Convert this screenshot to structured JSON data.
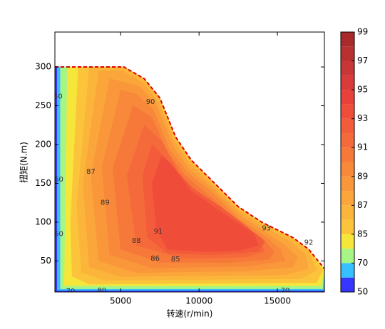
{
  "chart_data": {
    "type": "contour",
    "x_label": "转速(r/min)",
    "y_label": "扭矩(N.m)",
    "xlim": [
      800,
      18000
    ],
    "ylim": [
      10,
      345
    ],
    "xticks": [
      5000,
      10000,
      15000
    ],
    "yticks": [
      50,
      100,
      150,
      200,
      250,
      300
    ],
    "grid": false,
    "levels": [
      50,
      60,
      70,
      80,
      85,
      86,
      87,
      88,
      89,
      90,
      91,
      92,
      93,
      94,
      95,
      96,
      97,
      98,
      99
    ],
    "band_colors": [
      "#3636ff",
      "#36c0ff",
      "#a6f586",
      "#f6e63a",
      "#fbc43a",
      "#fbb53a",
      "#fba63a",
      "#fa973a",
      "#f8883a",
      "#f7793a",
      "#f56a3a",
      "#f35b3a",
      "#f04c3a",
      "#e8403a",
      "#d93a3a",
      "#c83636",
      "#b83030",
      "#a82a2a"
    ],
    "colorbar_ticks": [
      50,
      70,
      85,
      87,
      89,
      91,
      93,
      95,
      97,
      99
    ],
    "boundary": {
      "color": "#e00000",
      "x": [
        800,
        5200,
        6500,
        7500,
        8500,
        9500,
        11000,
        12500,
        14000,
        16000,
        17000,
        18000
      ],
      "y": [
        300,
        300,
        285,
        260,
        210,
        180,
        150,
        120,
        100,
        80,
        65,
        40
      ]
    },
    "regions": [
      {
        "level": 50,
        "polygon": [
          [
            800,
            300
          ],
          [
            5200,
            300
          ],
          [
            6500,
            285
          ],
          [
            7500,
            260
          ],
          [
            8500,
            210
          ],
          [
            9500,
            180
          ],
          [
            11000,
            150
          ],
          [
            12500,
            120
          ],
          [
            14000,
            100
          ],
          [
            16000,
            80
          ],
          [
            17000,
            65
          ],
          [
            18000,
            40
          ],
          [
            18000,
            10
          ],
          [
            800,
            10
          ]
        ]
      },
      {
        "level": 60,
        "polygon": [
          [
            950,
            300
          ],
          [
            5200,
            300
          ],
          [
            6500,
            285
          ],
          [
            7500,
            260
          ],
          [
            8500,
            210
          ],
          [
            9500,
            180
          ],
          [
            11000,
            150
          ],
          [
            12500,
            120
          ],
          [
            14000,
            100
          ],
          [
            16000,
            80
          ],
          [
            17000,
            65
          ],
          [
            18000,
            40
          ],
          [
            18000,
            12
          ],
          [
            950,
            12
          ]
        ]
      },
      {
        "level": 70,
        "polygon": [
          [
            1150,
            300
          ],
          [
            5200,
            300
          ],
          [
            6500,
            285
          ],
          [
            7500,
            260
          ],
          [
            8500,
            210
          ],
          [
            9500,
            180
          ],
          [
            11000,
            150
          ],
          [
            12500,
            120
          ],
          [
            14000,
            100
          ],
          [
            16000,
            80
          ],
          [
            17000,
            65
          ],
          [
            18000,
            40
          ],
          [
            17900,
            14
          ],
          [
            1150,
            14
          ]
        ]
      },
      {
        "level": 80,
        "polygon": [
          [
            1600,
            300
          ],
          [
            5200,
            300
          ],
          [
            6500,
            285
          ],
          [
            7500,
            260
          ],
          [
            8500,
            210
          ],
          [
            9500,
            180
          ],
          [
            11000,
            150
          ],
          [
            12500,
            120
          ],
          [
            14000,
            100
          ],
          [
            16000,
            80
          ],
          [
            17000,
            65
          ],
          [
            18000,
            40
          ],
          [
            17800,
            18
          ],
          [
            1400,
            18
          ]
        ]
      },
      {
        "level": 85,
        "polygon": [
          [
            2300,
            300
          ],
          [
            5200,
            300
          ],
          [
            6500,
            285
          ],
          [
            7500,
            260
          ],
          [
            8500,
            210
          ],
          [
            9500,
            180
          ],
          [
            11000,
            150
          ],
          [
            12500,
            120
          ],
          [
            14000,
            100
          ],
          [
            16000,
            80
          ],
          [
            17000,
            65
          ],
          [
            17900,
            38
          ],
          [
            17500,
            22
          ],
          [
            3000,
            20
          ],
          [
            1900,
            30
          ],
          [
            1800,
            100
          ]
        ]
      },
      {
        "level": 86,
        "polygon": [
          [
            3000,
            300
          ],
          [
            5200,
            300
          ],
          [
            6500,
            285
          ],
          [
            7500,
            258
          ],
          [
            8500,
            208
          ],
          [
            9500,
            178
          ],
          [
            11000,
            148
          ],
          [
            12500,
            118
          ],
          [
            14000,
            98
          ],
          [
            16000,
            78
          ],
          [
            17000,
            62
          ],
          [
            17500,
            38
          ],
          [
            16500,
            27
          ],
          [
            4000,
            25
          ],
          [
            2500,
            35
          ],
          [
            2200,
            120
          ]
        ]
      },
      {
        "level": 87,
        "polygon": [
          [
            3600,
            295
          ],
          [
            5100,
            295
          ],
          [
            6400,
            280
          ],
          [
            7400,
            255
          ],
          [
            8400,
            205
          ],
          [
            9400,
            175
          ],
          [
            11000,
            145
          ],
          [
            12500,
            115
          ],
          [
            14000,
            95
          ],
          [
            15800,
            75
          ],
          [
            16800,
            58
          ],
          [
            17000,
            40
          ],
          [
            15500,
            32
          ],
          [
            5000,
            30
          ],
          [
            3000,
            42
          ],
          [
            2600,
            150
          ]
        ]
      },
      {
        "level": 88,
        "polygon": [
          [
            4300,
            285
          ],
          [
            6200,
            275
          ],
          [
            7300,
            250
          ],
          [
            8300,
            200
          ],
          [
            9300,
            170
          ],
          [
            11000,
            140
          ],
          [
            12500,
            110
          ],
          [
            14000,
            90
          ],
          [
            15500,
            70
          ],
          [
            16300,
            55
          ],
          [
            16000,
            42
          ],
          [
            13000,
            37
          ],
          [
            6000,
            35
          ],
          [
            3600,
            50
          ],
          [
            3100,
            160
          ]
        ]
      },
      {
        "level": 89,
        "polygon": [
          [
            5000,
            270
          ],
          [
            6000,
            265
          ],
          [
            7100,
            245
          ],
          [
            8100,
            195
          ],
          [
            9200,
            165
          ],
          [
            11000,
            135
          ],
          [
            12500,
            105
          ],
          [
            14000,
            85
          ],
          [
            15200,
            65
          ],
          [
            15500,
            50
          ],
          [
            13000,
            43
          ],
          [
            7000,
            41
          ],
          [
            4300,
            58
          ],
          [
            3800,
            170
          ]
        ]
      },
      {
        "level": 90,
        "polygon": [
          [
            5800,
            250
          ],
          [
            7000,
            235
          ],
          [
            8000,
            190
          ],
          [
            9100,
            160
          ],
          [
            11000,
            128
          ],
          [
            12500,
            100
          ],
          [
            14000,
            80
          ],
          [
            14800,
            62
          ],
          [
            14500,
            52
          ],
          [
            12000,
            48
          ],
          [
            7500,
            48
          ],
          [
            5000,
            65
          ],
          [
            4500,
            170
          ]
        ]
      },
      {
        "level": 91,
        "polygon": [
          [
            6500,
            225
          ],
          [
            7600,
            205
          ],
          [
            8800,
            160
          ],
          [
            10500,
            128
          ],
          [
            12500,
            98
          ],
          [
            13800,
            78
          ],
          [
            14200,
            62
          ],
          [
            13000,
            55
          ],
          [
            9000,
            53
          ],
          [
            6000,
            70
          ],
          [
            5400,
            160
          ]
        ]
      },
      {
        "level": 92,
        "polygon": [
          [
            7000,
            200
          ],
          [
            8000,
            180
          ],
          [
            9500,
            145
          ],
          [
            11500,
            118
          ],
          [
            13000,
            95
          ],
          [
            14200,
            75
          ],
          [
            13800,
            62
          ],
          [
            11000,
            58
          ],
          [
            8000,
            60
          ],
          [
            6700,
            80
          ],
          [
            6400,
            160
          ]
        ]
      },
      {
        "level": 93,
        "polygon": [
          [
            7600,
            185
          ],
          [
            8200,
            175
          ],
          [
            9500,
            140
          ],
          [
            11500,
            112
          ],
          [
            13500,
            85
          ],
          [
            13800,
            70
          ],
          [
            12500,
            63
          ],
          [
            10000,
            62
          ],
          [
            8000,
            65
          ],
          [
            7300,
            90
          ],
          [
            7000,
            150
          ]
        ]
      }
    ],
    "contour_labels": [
      {
        "text": "90",
        "x": 6900,
        "y": 255
      },
      {
        "text": "87",
        "x": 3100,
        "y": 165
      },
      {
        "text": "89",
        "x": 4000,
        "y": 125
      },
      {
        "text": "91",
        "x": 7400,
        "y": 88
      },
      {
        "text": "88",
        "x": 6000,
        "y": 76
      },
      {
        "text": "86",
        "x": 7200,
        "y": 53
      },
      {
        "text": "85",
        "x": 8500,
        "y": 52
      },
      {
        "text": "93",
        "x": 14300,
        "y": 92
      },
      {
        "text": "92",
        "x": 17000,
        "y": 74
      },
      {
        "text": "80",
        "x": 3800,
        "y": 12
      },
      {
        "text": "70",
        "x": 15500,
        "y": 12
      },
      {
        "text": "70",
        "x": 1800,
        "y": 11
      },
      {
        "text": "60",
        "x": 1050,
        "y": 155
      },
      {
        "text": "60",
        "x": 1050,
        "y": 85
      },
      {
        "text": "50",
        "x": 1000,
        "y": 262
      }
    ]
  }
}
